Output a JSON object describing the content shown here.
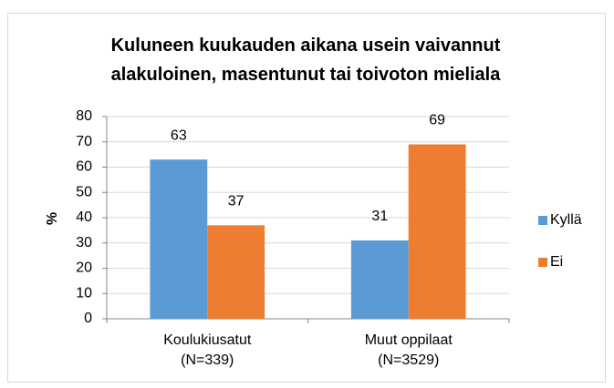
{
  "chart_data": {
    "type": "bar",
    "title": "Kuluneen kuukauden aikana usein vaivannut\nalakuloinen, masentunut tai toivoton mieliala",
    "ylabel": "%",
    "categories": [
      "Koulukiusatut\n(N=339)",
      "Muut oppilaat\n(N=3529)"
    ],
    "series": [
      {
        "name": "Kyllä",
        "color": "#5b9bd5",
        "values": [
          63,
          31
        ]
      },
      {
        "name": "Ei",
        "color": "#ed7d31",
        "values": [
          37,
          69
        ]
      }
    ],
    "ylim": [
      0,
      80
    ],
    "yticks": [
      0,
      10,
      20,
      30,
      40,
      50,
      60,
      70,
      80
    ],
    "grid": true,
    "legend": "right"
  }
}
